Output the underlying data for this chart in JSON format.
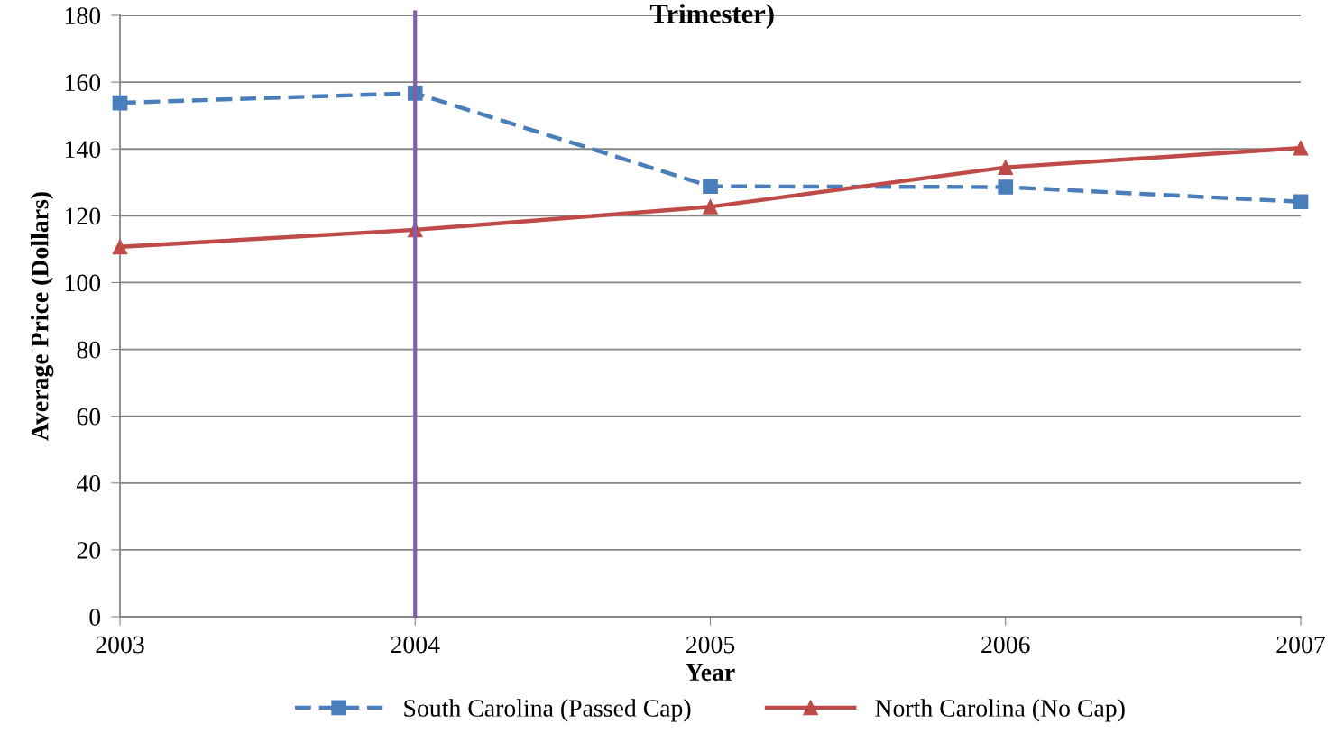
{
  "chart_data": {
    "type": "line",
    "title": "Trimester)",
    "xlabel": "Year",
    "ylabel": "Average Price (Dollars)",
    "x": [
      2003,
      2004,
      2005,
      2006,
      2007
    ],
    "xlim": [
      2003,
      2007
    ],
    "xticks": [
      2003,
      2004,
      2005,
      2006,
      2007
    ],
    "ylim": [
      0,
      180
    ],
    "yticks": [
      0,
      20,
      40,
      60,
      80,
      100,
      120,
      140,
      160,
      180
    ],
    "grid": "y",
    "legend": "bottom",
    "series": [
      {
        "name": "South Carolina (Passed Cap)",
        "color": "#4a7ebb",
        "values": [
          153.8,
          156.7,
          128.8,
          128.6,
          124.2
        ],
        "marker": "square",
        "line_style": "dashed"
      },
      {
        "name": "North Carolina (No Cap)",
        "color": "#be4b48",
        "values": [
          110.7,
          115.8,
          122.7,
          134.5,
          140.3
        ],
        "marker": "triangle",
        "line_style": "solid"
      }
    ],
    "ref_lines": [
      {
        "axis": "x",
        "value": 2004,
        "color": "#7f5fa8",
        "line_style": "solid"
      }
    ]
  }
}
